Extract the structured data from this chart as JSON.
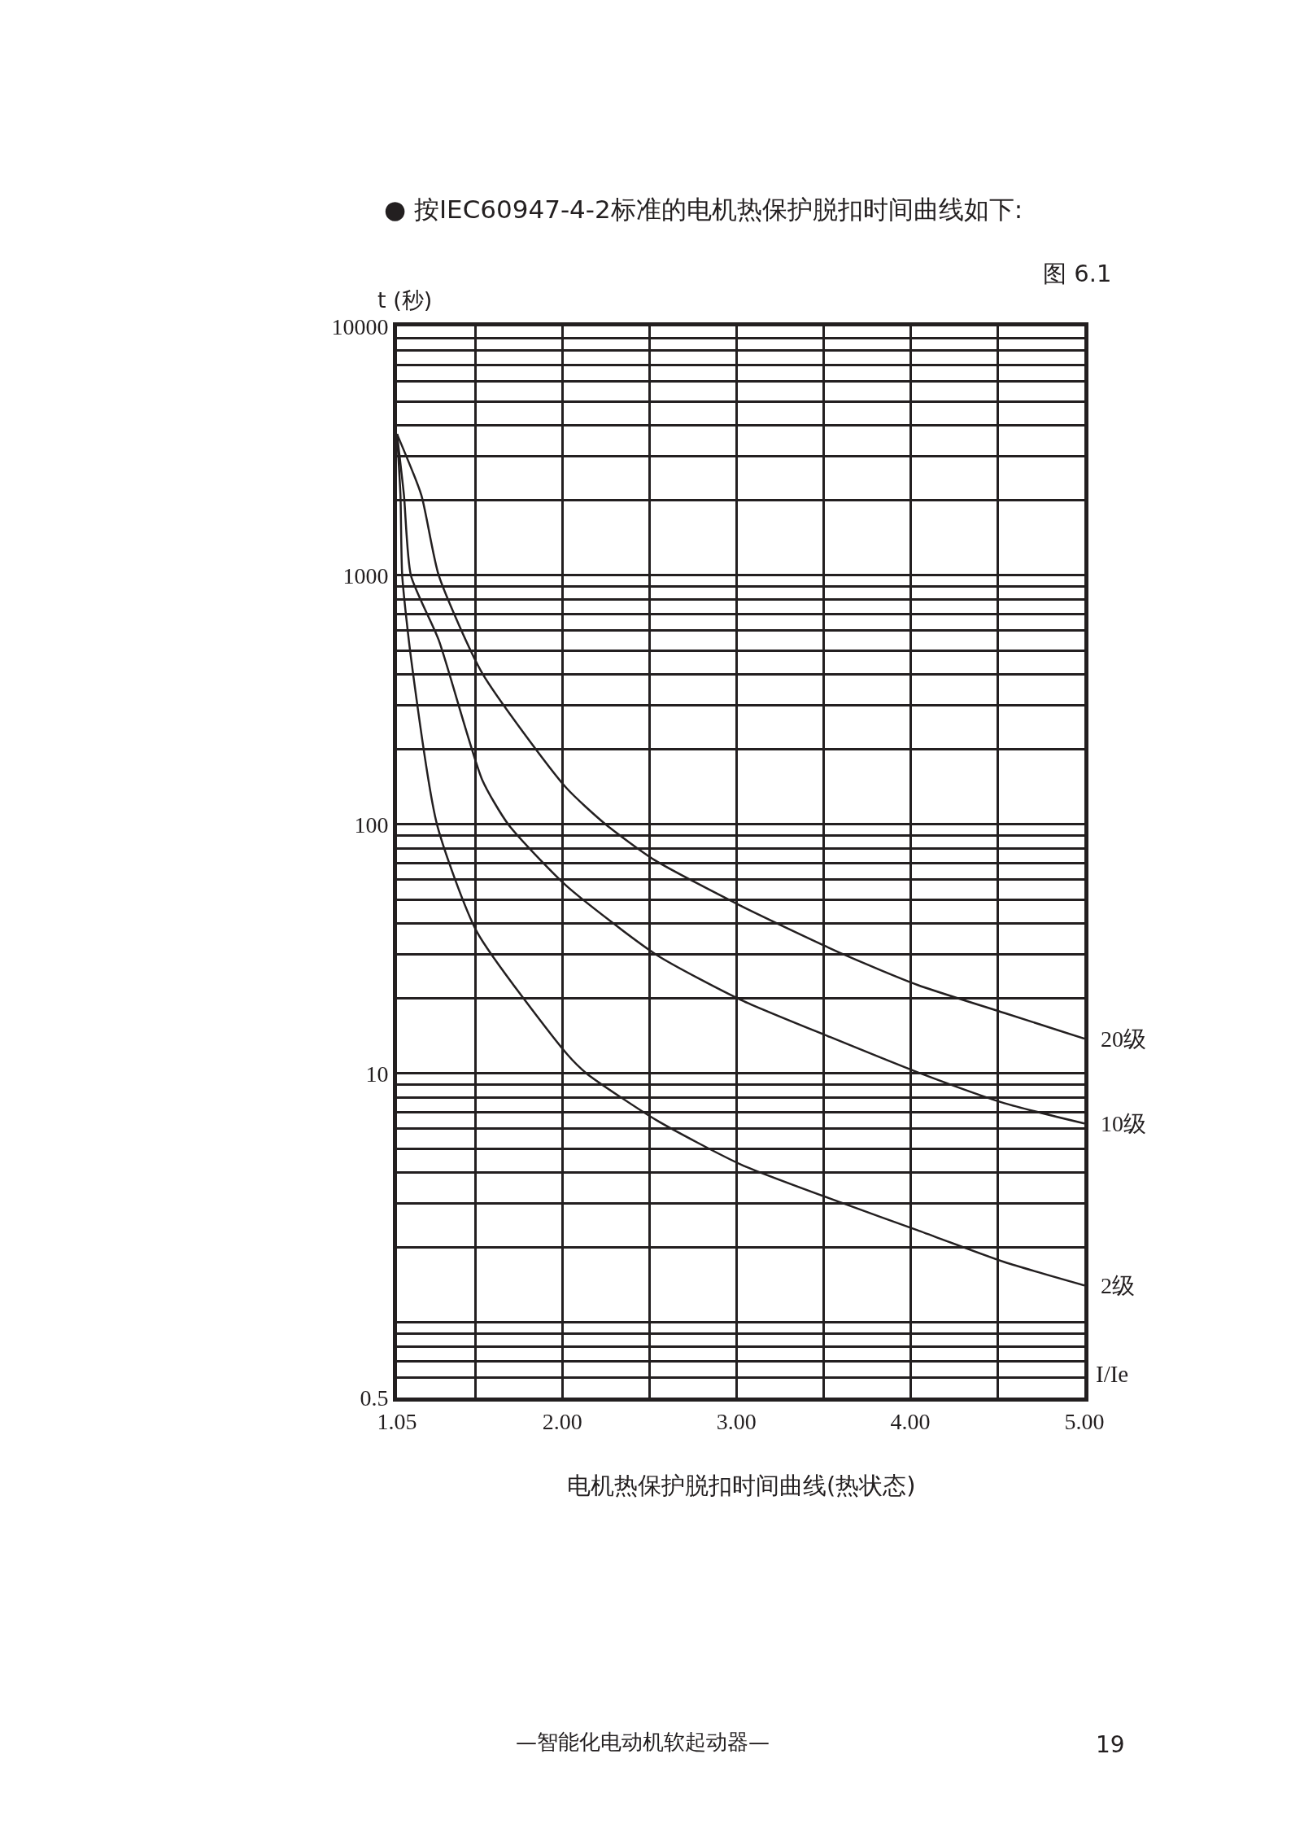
{
  "chart_data": {
    "type": "line",
    "title": "● 按IEC60947-4-2标准的电机热保护脱扣时间曲线如下:",
    "subtitle": "图 6.1",
    "ylabel": "t (秒)",
    "xlabel": "I/Ie",
    "annotations": [
      "电机热保护脱扣时间曲线(热状态)",
      "—智能化电动机软起动器—",
      "19"
    ],
    "log": "y",
    "grid": true,
    "legend": false,
    "marker": "none",
    "line_style": "solid",
    "xlim": [
      1.05,
      5.0
    ],
    "xticks": [
      1.05,
      {
        "value": 1.5,
        "label": null
      },
      {
        "value": 2.0,
        "label": "2.00"
      },
      {
        "value": 2.5,
        "label": null
      },
      {
        "value": 3.0,
        "label": "3.00"
      },
      {
        "value": 3.5,
        "label": null
      },
      {
        "value": 4.0,
        "label": "4.00"
      },
      {
        "value": 4.5,
        "label": null
      },
      {
        "value": 5.0,
        "label": "5.00"
      }
    ],
    "ylim": [
      0.5,
      10000
    ],
    "yticks": [
      0.5,
      {
        "value": 0.6,
        "label": null
      },
      {
        "value": 0.7,
        "label": null
      },
      {
        "value": 0.8,
        "label": null
      },
      {
        "value": 0.9,
        "label": null
      },
      {
        "value": 1,
        "label": null
      },
      {
        "value": 2,
        "label": null
      },
      {
        "value": 3,
        "label": null
      },
      {
        "value": 4,
        "label": null
      },
      {
        "value": 5,
        "label": null
      },
      {
        "value": 6,
        "label": null
      },
      {
        "value": 7,
        "label": null
      },
      {
        "value": 8,
        "label": null
      },
      {
        "value": 9,
        "label": null
      },
      10,
      {
        "value": 20,
        "label": null
      },
      {
        "value": 30,
        "label": null
      },
      {
        "value": 40,
        "label": null
      },
      {
        "value": 50,
        "label": null
      },
      {
        "value": 60,
        "label": null
      },
      {
        "value": 70,
        "label": null
      },
      {
        "value": 80,
        "label": null
      },
      {
        "value": 90,
        "label": null
      },
      100,
      {
        "value": 200,
        "label": null
      },
      {
        "value": 300,
        "label": null
      },
      {
        "value": 400,
        "label": null
      },
      {
        "value": 500,
        "label": null
      },
      {
        "value": 600,
        "label": null
      },
      {
        "value": 700,
        "label": null
      },
      {
        "value": 800,
        "label": null
      },
      {
        "value": 900,
        "label": null
      },
      1000,
      {
        "value": 2000,
        "label": null
      },
      {
        "value": 3000,
        "label": null
      },
      {
        "value": 4000,
        "label": null
      },
      {
        "value": 5000,
        "label": null
      },
      {
        "value": 6000,
        "label": null
      },
      {
        "value": 7000,
        "label": null
      },
      {
        "value": 8000,
        "label": null
      },
      {
        "value": 9000,
        "label": null
      },
      10000
    ],
    "series": [
      {
        "name": "20级",
        "color": "#231f20",
        "x": [
          1.05,
          1.19,
          1.29,
          1.54,
          2.02,
          2.25,
          2.53,
          3.03,
          3.62,
          4.04,
          4.54,
          5.0
        ],
        "values": [
          3700,
          2100,
          1000,
          405,
          141,
          100,
          72,
          47,
          30,
          22.7,
          17.5,
          13.8
        ]
      },
      {
        "name": "10级",
        "color": "#231f20",
        "x": [
          1.05,
          1.09,
          1.13,
          1.29,
          1.54,
          1.69,
          2.02,
          2.54,
          3.03,
          3.54,
          4.06,
          4.54,
          5.0
        ],
        "values": [
          3700,
          2100,
          1000,
          550,
          151,
          100,
          57,
          30,
          19.7,
          14,
          10,
          7.6,
          6.3
        ]
      },
      {
        "name": "2级",
        "color": "#231f20",
        "x": [
          1.05,
          1.07,
          1.08,
          1.13,
          1.28,
          1.51,
          2.03,
          2.14,
          2.54,
          3.03,
          3.62,
          4.04,
          4.54,
          5.0
        ],
        "values": [
          3700,
          2100,
          1000,
          470,
          100,
          37,
          11.9,
          10,
          6.5,
          4.3,
          3.0,
          2.35,
          1.75,
          1.41
        ]
      }
    ]
  }
}
